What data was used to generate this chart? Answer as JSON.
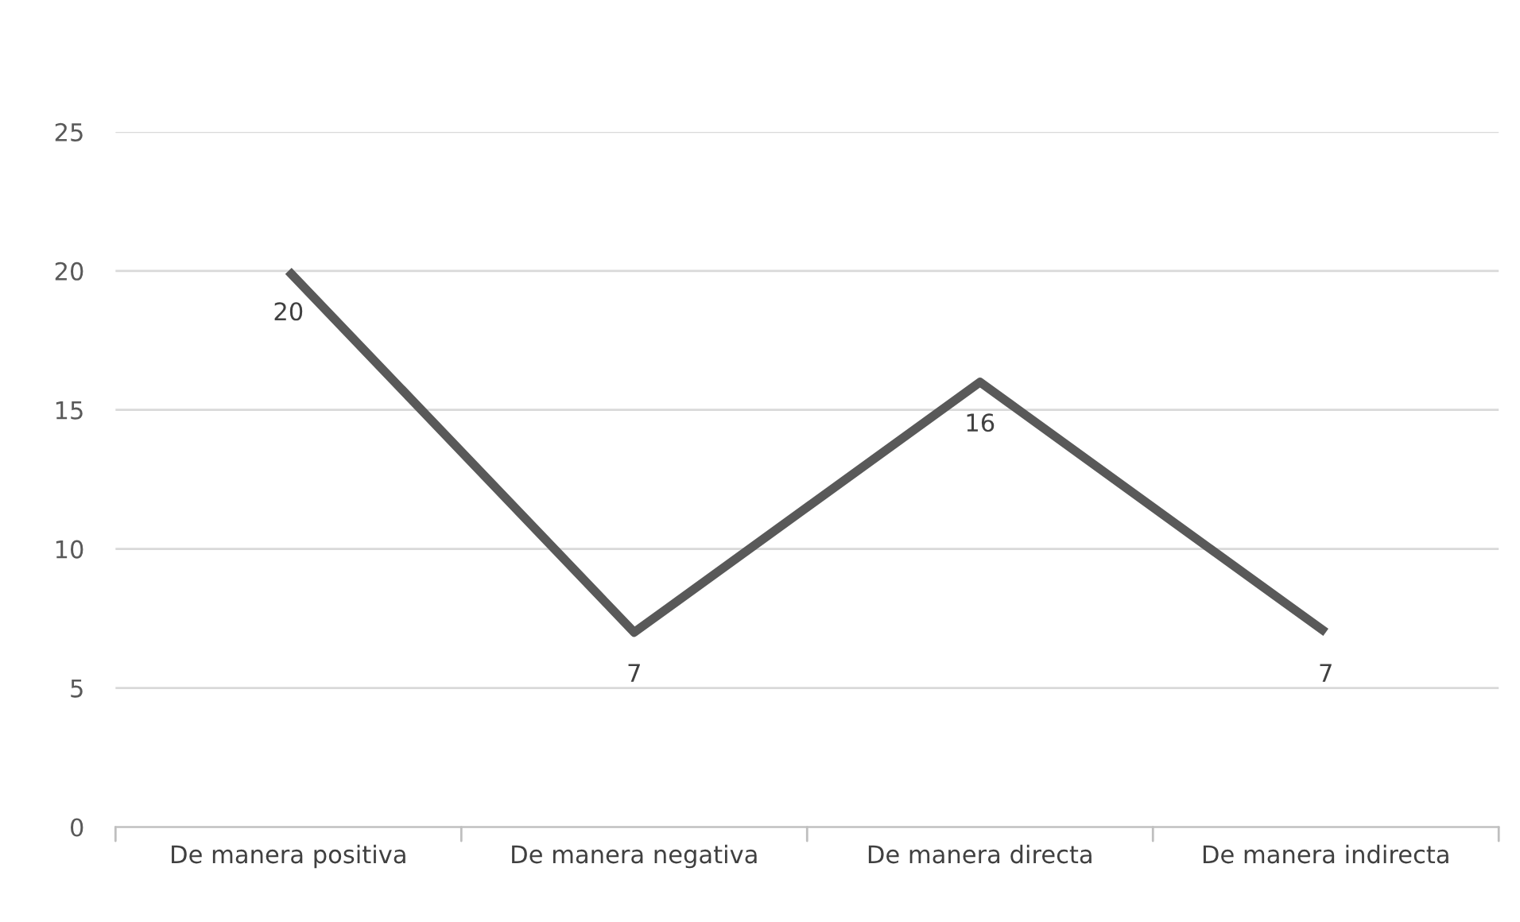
{
  "chart_data": {
    "type": "line",
    "categories": [
      "De manera positiva",
      "De manera negativa",
      "De manera directa",
      "De manera indirecta"
    ],
    "series": [
      {
        "color": "#595959",
        "values": [
          20,
          7,
          16,
          7
        ]
      }
    ],
    "ylim": [
      0,
      25
    ],
    "yticks": [
      0,
      5,
      10,
      15,
      20,
      25
    ],
    "grid": "y",
    "data_labels": true,
    "marker": "none",
    "line_style": "solid"
  }
}
